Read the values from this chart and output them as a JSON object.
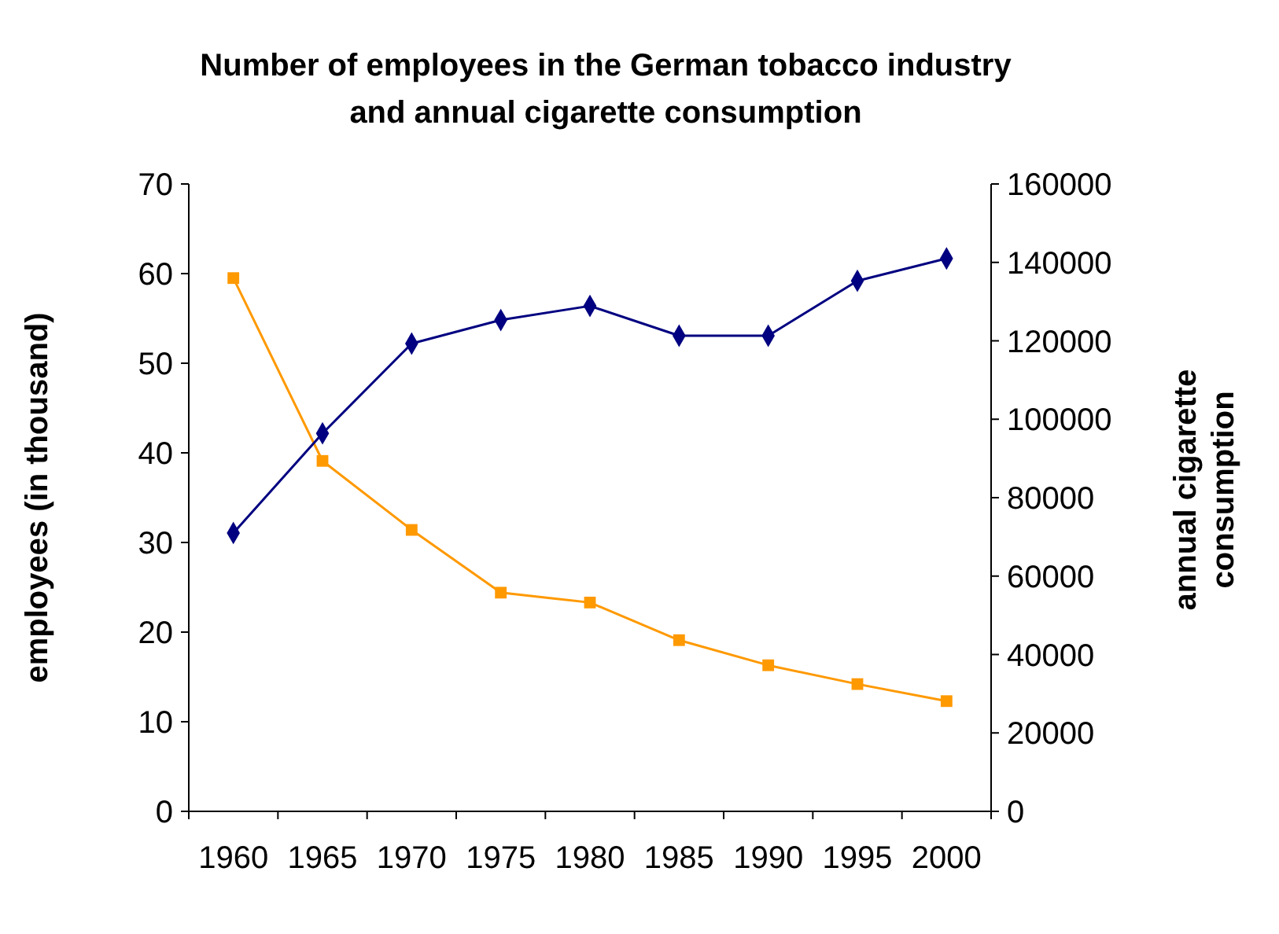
{
  "chart_data": {
    "type": "line",
    "title": "Number of employees in the German tobacco industry and annual cigarette consumption",
    "ylabel": "employees (in thousand)",
    "y2label": "annual cigarette consumption",
    "categories": [
      "1960",
      "1965",
      "1970",
      "1975",
      "1980",
      "1985",
      "1990",
      "1995",
      "2000"
    ],
    "series": [
      {
        "color": "#ff9900",
        "marker": "square",
        "values": [
          59.5,
          39.1,
          31.4,
          24.4,
          23.3,
          19.1,
          16.3,
          14.2,
          12.3
        ]
      },
      {
        "color": "#000080",
        "marker": "diamond",
        "axis": "y2",
        "values": [
          71000,
          96400,
          119300,
          125300,
          128900,
          121300,
          121300,
          135300,
          141000
        ]
      }
    ],
    "ylim": [
      0,
      70
    ],
    "yticks": [
      0,
      10,
      20,
      30,
      40,
      50,
      60,
      70
    ],
    "y2lim": [
      0,
      160000
    ],
    "y2ticks": [
      0,
      20000,
      40000,
      60000,
      80000,
      100000,
      120000,
      140000,
      160000
    ],
    "grid": false
  }
}
